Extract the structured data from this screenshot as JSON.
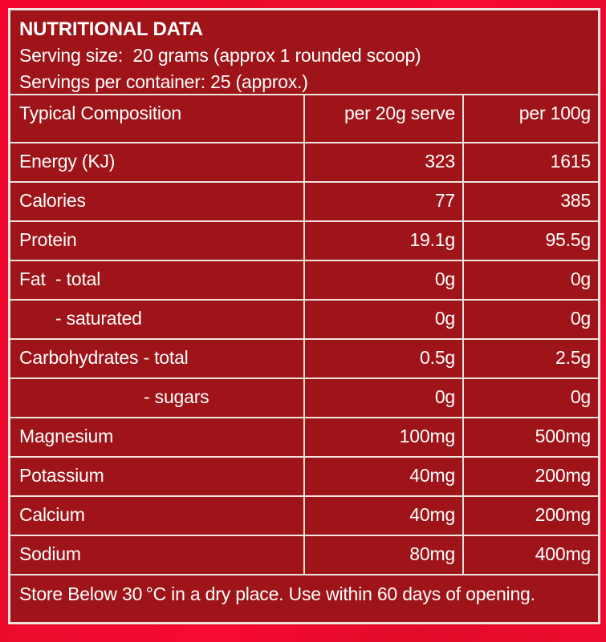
{
  "colors": {
    "outer_background": "#ef0c2e",
    "panel_background": "#9e1418",
    "border": "#ede4e0",
    "text": "#ffffff"
  },
  "header": {
    "title": "NUTRITIONAL DATA",
    "serving_size": "Serving size:  20 grams (approx 1 rounded scoop)",
    "servings_per_container": "Servings per container: 25 (approx.)"
  },
  "chart_data": {
    "type": "table",
    "title": "NUTRITIONAL DATA",
    "columns": [
      "Typical Composition",
      "per 20g serve",
      "per 100g"
    ],
    "rows": [
      {
        "label": "Energy (KJ)",
        "per_serve": "323",
        "per_100g": "1615",
        "indent": 0
      },
      {
        "label": "Calories",
        "per_serve": "77",
        "per_100g": "385",
        "indent": 0
      },
      {
        "label": "Protein",
        "per_serve": "19.1g",
        "per_100g": "95.5g",
        "indent": 0
      },
      {
        "label": "Fat  - total",
        "per_serve": "0g",
        "per_100g": "0g",
        "indent": 0
      },
      {
        "label": "- saturated",
        "per_serve": "0g",
        "per_100g": "0g",
        "indent": 1
      },
      {
        "label": "Carbohydrates - total",
        "per_serve": "0.5g",
        "per_100g": "2.5g",
        "indent": 0
      },
      {
        "label": "- sugars",
        "per_serve": "0g",
        "per_100g": "0g",
        "indent": 2
      },
      {
        "label": "Magnesium",
        "per_serve": "100mg",
        "per_100g": "500mg",
        "indent": 0
      },
      {
        "label": "Potassium",
        "per_serve": "40mg",
        "per_100g": "200mg",
        "indent": 0
      },
      {
        "label": "Calcium",
        "per_serve": "40mg",
        "per_100g": "200mg",
        "indent": 0
      },
      {
        "label": "Sodium",
        "per_serve": "80mg",
        "per_100g": "400mg",
        "indent": 0
      }
    ]
  },
  "footer": {
    "storage_note": "Store Below 30 °C in a dry place. Use within 60 days of opening."
  }
}
